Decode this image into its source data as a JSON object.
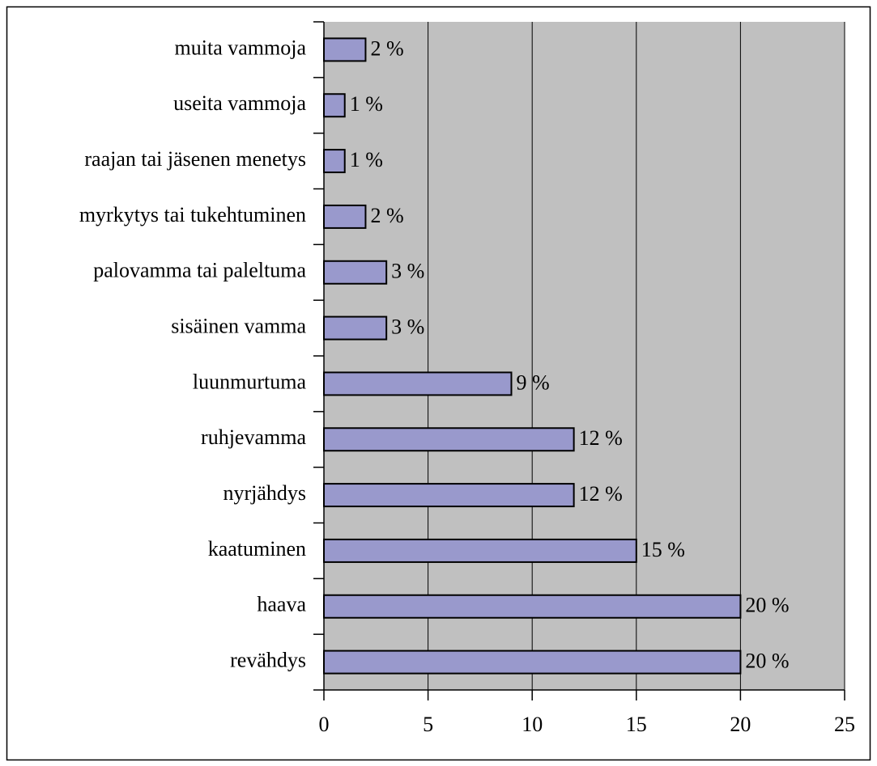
{
  "chart_data": {
    "type": "barh",
    "categories": [
      "revähdys",
      "haava",
      "kaatuminen",
      "nyrjähdys",
      "ruhjevamma",
      "luunmurtuma",
      "sisäinen vamma",
      "palovamma tai paleltuma",
      "myrkytys tai tukehtuminen",
      "raajan tai jäsenen menetys",
      "useita vammoja",
      "muita vammoja"
    ],
    "values": [
      20,
      20,
      15,
      12,
      12,
      9,
      3,
      3,
      2,
      1,
      1,
      2
    ],
    "value_labels": [
      "20 %",
      "20 %",
      "15 %",
      "12 %",
      "12 %",
      "9 %",
      "3 %",
      "3 %",
      "2 %",
      "1 %",
      "1 %",
      "2 %"
    ],
    "color": "#9999cc",
    "xlim": [
      0,
      25
    ],
    "xticks": [
      0,
      5,
      10,
      15,
      20,
      25
    ],
    "grid": true
  }
}
